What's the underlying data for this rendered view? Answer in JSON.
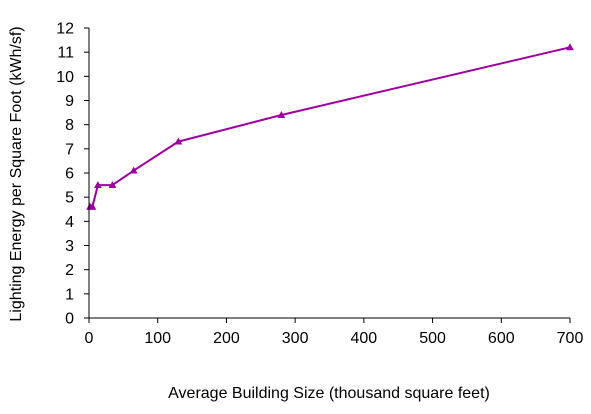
{
  "chart_data": {
    "type": "line",
    "xlabel": "Average Building Size (thousand square feet)",
    "ylabel": "Lighting Energy per Square Foot (kWh/sf)",
    "xlim": [
      0,
      700
    ],
    "ylim": [
      0,
      12
    ],
    "xticks": [
      0,
      100,
      200,
      300,
      400,
      500,
      600,
      700
    ],
    "yticks": [
      0,
      1,
      2,
      3,
      4,
      5,
      6,
      7,
      8,
      9,
      10,
      11,
      12
    ],
    "grid": false,
    "legend": "none",
    "series": [
      {
        "color": "#a000a0",
        "marker": "triangle",
        "x": [
          1.5,
          5,
          13,
          34,
          65,
          130,
          280,
          700
        ],
        "y": [
          4.6,
          4.6,
          5.5,
          5.5,
          6.1,
          7.3,
          8.4,
          11.2
        ]
      }
    ]
  }
}
